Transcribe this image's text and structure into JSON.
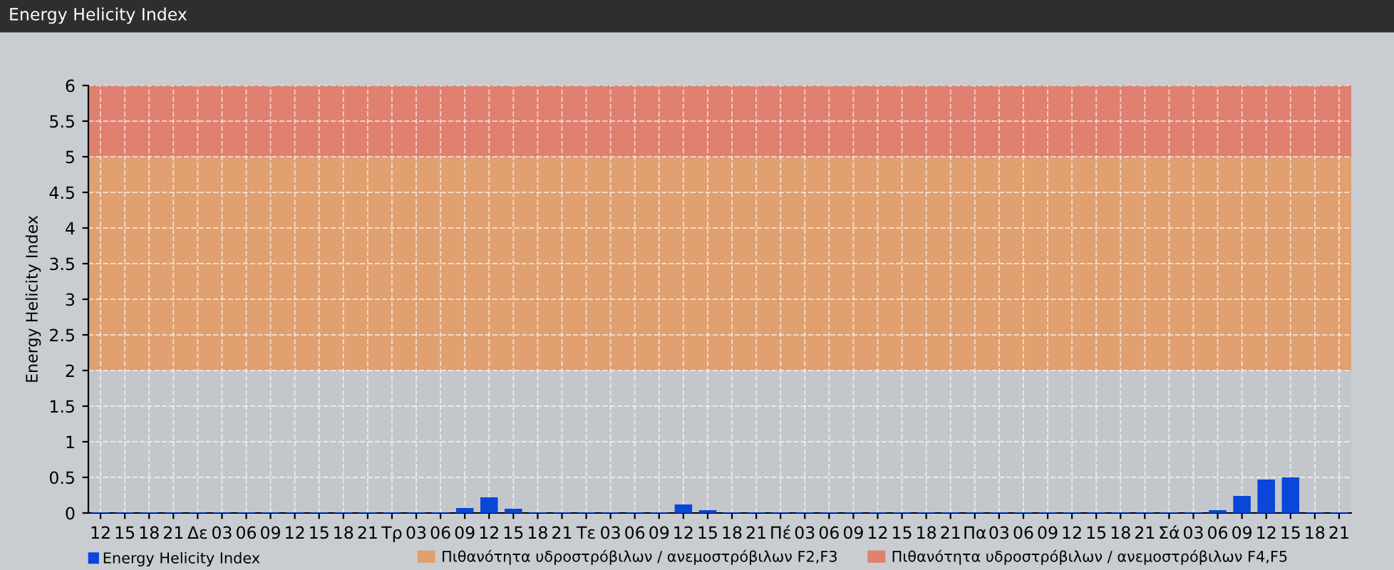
{
  "chart_data": {
    "type": "bar",
    "title": "Energy Helicity Index",
    "ylabel": "Energy Helicity Index",
    "categories": [
      "12",
      "15",
      "18",
      "21",
      "Δε",
      "03",
      "06",
      "09",
      "12",
      "15",
      "18",
      "21",
      "Τρ",
      "03",
      "06",
      "09",
      "12",
      "15",
      "18",
      "21",
      "Τε",
      "03",
      "06",
      "09",
      "12",
      "15",
      "18",
      "21",
      "Πέ",
      "03",
      "06",
      "09",
      "12",
      "15",
      "18",
      "21",
      "Πα",
      "03",
      "06",
      "09",
      "12",
      "15",
      "18",
      "21",
      "Σά",
      "03",
      "06",
      "09",
      "12",
      "15",
      "18",
      "21"
    ],
    "series": [
      {
        "name": "Energy Helicity Index",
        "color": "#0a46d8",
        "values": [
          0.01,
          0.01,
          0.01,
          0.01,
          0.01,
          0.01,
          0.01,
          0.01,
          0.01,
          0.01,
          0.01,
          0.01,
          0.01,
          0.01,
          0.01,
          0.07,
          0.22,
          0.06,
          0.01,
          0.01,
          0.01,
          0.01,
          0.01,
          0.01,
          0.12,
          0.04,
          0.01,
          0.01,
          0.01,
          0.01,
          0.01,
          0.01,
          0.01,
          0.01,
          0.01,
          0.01,
          0.01,
          0.01,
          0.01,
          0.01,
          0.01,
          0.01,
          0.01,
          0.01,
          0.01,
          0.01,
          0.04,
          0.24,
          0.47,
          0.5,
          0.01,
          0.01
        ]
      }
    ],
    "ylim": [
      0,
      6
    ],
    "yticks": [
      0,
      0.5,
      1,
      1.5,
      2,
      2.5,
      3,
      3.5,
      4,
      4.5,
      5,
      5.5,
      6
    ],
    "bands": [
      {
        "axis": "y",
        "from": 2,
        "to": 5,
        "label": "Πιθανότητα υδροστρόβιλων / ανεμοστρόβιλων F2,F3",
        "color": "#e0a070"
      },
      {
        "axis": "y",
        "from": 5,
        "to": 6,
        "label": "Πιθανότητα υδροστρόβιλων / ανεμοστρόβιλων F4,F5",
        "color": "#e08070"
      }
    ],
    "grid": true,
    "legend": "bottom left"
  }
}
